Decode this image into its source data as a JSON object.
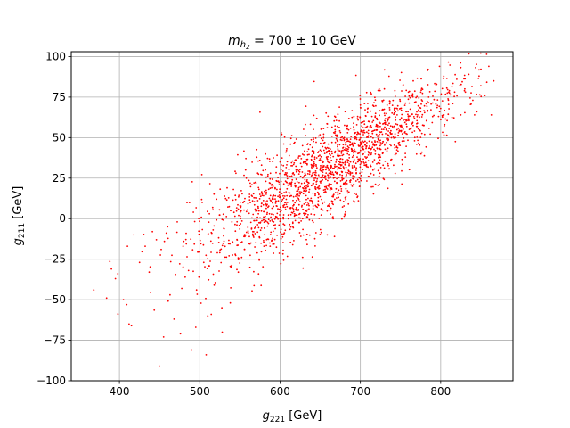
{
  "chart_data": {
    "type": "scatter",
    "title": {
      "m": "m",
      "sub_h": "h",
      "sub_2": "2",
      "rest": " = 700 ± 10 GeV"
    },
    "xlabel": {
      "g": "g",
      "sub": "221",
      "unit": " [GeV]"
    },
    "ylabel": {
      "g": "g",
      "sub": "211",
      "unit": " [GeV]"
    },
    "xlim": [
      340,
      890
    ],
    "ylim": [
      -100,
      103
    ],
    "xticks": [
      400,
      500,
      600,
      700,
      800
    ],
    "yticks": [
      -100,
      -75,
      -50,
      -25,
      0,
      25,
      50,
      75,
      100
    ],
    "grid": true,
    "marker_color": "#ff0000",
    "point_count": 2000,
    "trend": {
      "slope": 0.3,
      "intercept_at_x600": 12
    },
    "points": [
      [
        368,
        -44
      ],
      [
        384,
        -49
      ],
      [
        390,
        -31
      ],
      [
        395,
        -37
      ],
      [
        398,
        -34
      ],
      [
        405,
        -50
      ],
      [
        409,
        -53
      ],
      [
        410,
        -17
      ],
      [
        412,
        -65
      ],
      [
        415,
        -66
      ],
      [
        418,
        -10
      ],
      [
        425,
        -27
      ],
      [
        432,
        -17
      ],
      [
        437,
        -33
      ],
      [
        441,
        -8
      ],
      [
        446,
        -13
      ],
      [
        450,
        -91
      ],
      [
        452,
        -19
      ],
      [
        455,
        -73
      ],
      [
        456,
        -14
      ],
      [
        460,
        -5
      ],
      [
        463,
        -47
      ],
      [
        468,
        -62
      ],
      [
        472,
        -2
      ],
      [
        476,
        -71
      ],
      [
        480,
        -14
      ],
      [
        483,
        -9
      ],
      [
        486,
        -32
      ],
      [
        490,
        -81
      ],
      [
        492,
        4
      ],
      [
        495,
        -67
      ],
      [
        496,
        -44
      ],
      [
        499,
        -36
      ],
      [
        503,
        10
      ],
      [
        505,
        -27
      ],
      [
        508,
        -84
      ],
      [
        510,
        -60
      ],
      [
        512,
        3
      ],
      [
        515,
        -9
      ],
      [
        518,
        -41
      ],
      [
        521,
        12
      ],
      [
        525,
        -21
      ],
      [
        528,
        -70
      ],
      [
        530,
        -6
      ],
      [
        534,
        19
      ],
      [
        538,
        -52
      ],
      [
        540,
        -2
      ],
      [
        545,
        28
      ],
      [
        548,
        -33
      ],
      [
        551,
        7
      ],
      [
        555,
        -11
      ],
      [
        558,
        25
      ],
      [
        562,
        15
      ],
      [
        566,
        -8
      ],
      [
        570,
        22
      ],
      [
        573,
        3
      ],
      [
        577,
        33
      ],
      [
        580,
        -17
      ],
      [
        584,
        11
      ],
      [
        588,
        28
      ],
      [
        592,
        -2
      ],
      [
        596,
        18
      ],
      [
        600,
        35
      ],
      [
        604,
        8
      ],
      [
        608,
        42
      ],
      [
        612,
        22
      ],
      [
        616,
        -5
      ],
      [
        620,
        30
      ],
      [
        624,
        14
      ],
      [
        628,
        45
      ],
      [
        632,
        27
      ],
      [
        636,
        6
      ],
      [
        640,
        39
      ],
      [
        644,
        25
      ],
      [
        648,
        51
      ],
      [
        652,
        32
      ],
      [
        656,
        18
      ],
      [
        660,
        46
      ],
      [
        664,
        36
      ],
      [
        668,
        23
      ],
      [
        672,
        43
      ],
      [
        676,
        31
      ],
      [
        680,
        50
      ],
      [
        684,
        40
      ],
      [
        688,
        28
      ],
      [
        692,
        56
      ],
      [
        696,
        38
      ],
      [
        700,
        47
      ],
      [
        705,
        33
      ],
      [
        710,
        60
      ],
      [
        715,
        44
      ],
      [
        720,
        52
      ],
      [
        725,
        38
      ],
      [
        730,
        65
      ],
      [
        735,
        49
      ],
      [
        740,
        57
      ],
      [
        745,
        44
      ],
      [
        750,
        68
      ],
      [
        755,
        53
      ],
      [
        760,
        61
      ],
      [
        765,
        76
      ],
      [
        770,
        57
      ],
      [
        775,
        66
      ],
      [
        780,
        52
      ],
      [
        785,
        75
      ],
      [
        790,
        63
      ],
      [
        795,
        83
      ],
      [
        800,
        68
      ],
      [
        805,
        58
      ],
      [
        810,
        78
      ],
      [
        815,
        71
      ],
      [
        820,
        86
      ],
      [
        825,
        64
      ],
      [
        830,
        80
      ],
      [
        835,
        89
      ],
      [
        840,
        73
      ],
      [
        845,
        66
      ],
      [
        850,
        82
      ],
      [
        855,
        76
      ],
      [
        860,
        94
      ],
      [
        863,
        64
      ],
      [
        866,
        85
      ]
    ]
  }
}
